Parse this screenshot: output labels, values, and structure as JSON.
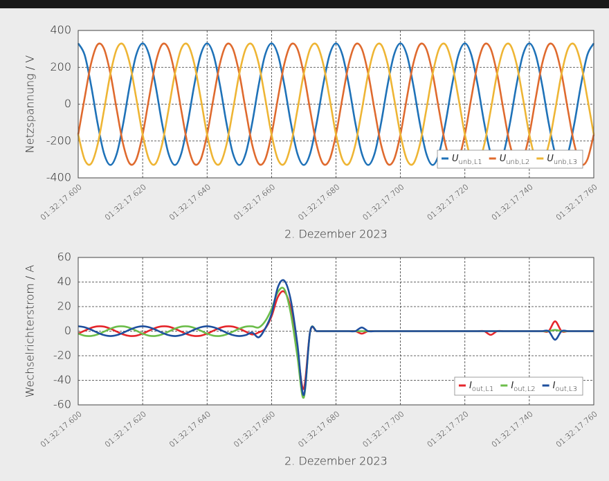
{
  "chart_data": [
    {
      "type": "line",
      "ylabel": "Netzspannung / V",
      "xlabel": "2. Dezember 2023",
      "x": [
        17.6,
        17.602,
        17.604,
        17.606,
        17.608,
        17.61,
        17.612,
        17.614,
        17.616,
        17.618,
        17.62,
        17.622,
        17.624,
        17.626,
        17.628,
        17.63,
        17.632,
        17.634,
        17.636,
        17.638,
        17.64,
        17.642,
        17.644,
        17.646,
        17.648,
        17.65,
        17.652,
        17.654,
        17.656,
        17.658,
        17.66,
        17.662,
        17.664,
        17.666,
        17.668,
        17.67,
        17.672,
        17.674,
        17.676,
        17.678,
        17.68,
        17.682,
        17.684,
        17.686,
        17.688,
        17.69,
        17.692,
        17.694,
        17.696,
        17.698,
        17.7,
        17.702,
        17.704,
        17.706,
        17.708,
        17.71,
        17.712,
        17.714,
        17.716,
        17.718,
        17.72,
        17.722,
        17.724,
        17.726,
        17.728,
        17.73,
        17.732,
        17.734,
        17.736,
        17.738,
        17.74,
        17.742,
        17.744,
        17.746,
        17.748,
        17.75,
        17.752,
        17.754,
        17.756,
        17.758,
        17.76
      ],
      "xlim": [
        17.6,
        17.76
      ],
      "xticks": [
        {
          "value": 17.6,
          "label": "01:32:17.600"
        },
        {
          "value": 17.62,
          "label": "01:32:17.620"
        },
        {
          "value": 17.64,
          "label": "01:32:17.640"
        },
        {
          "value": 17.66,
          "label": "01:32:17.660"
        },
        {
          "value": 17.68,
          "label": "01:32:17.680"
        },
        {
          "value": 17.7,
          "label": "01:32:17.700"
        },
        {
          "value": 17.72,
          "label": "01:32:17.720"
        },
        {
          "value": 17.74,
          "label": "01:32:17.740"
        },
        {
          "value": 17.76,
          "label": "01:32:17.760"
        }
      ],
      "ylim": [
        -400,
        400
      ],
      "yticks": [
        -400,
        -200,
        0,
        200,
        400
      ],
      "grid": true,
      "legend": "lower right",
      "series": [
        {
          "name": "U",
          "name_sub": "unb,L1",
          "color": "#1f72b8",
          "values": [
            330,
            267,
            102,
            -102,
            -267,
            -330,
            -267,
            -102,
            102,
            267,
            330,
            267,
            102,
            -102,
            -267,
            -330,
            -267,
            -102,
            102,
            267,
            330,
            267,
            102,
            -102,
            -267,
            -330,
            -267,
            -102,
            102,
            267,
            330,
            267,
            102,
            -102,
            -267,
            -330,
            -267,
            -102,
            102,
            267,
            330,
            267,
            102,
            -102,
            -267,
            -330,
            -267,
            -102,
            102,
            267,
            330,
            267,
            102,
            -102,
            -267,
            -330,
            -267,
            -102,
            102,
            267,
            330,
            267,
            102,
            -102,
            -267,
            -330,
            -267,
            -102,
            102,
            267,
            330,
            267,
            102,
            -102,
            -267,
            -330,
            -267,
            -102,
            102,
            267,
            330
          ]
        },
        {
          "name": "U",
          "name_sub": "unb,L2",
          "color": "#df6a2e",
          "values": [
            -165,
            34,
            221,
            323,
            301,
            165,
            -34,
            -221,
            -323,
            -301,
            -165,
            34,
            221,
            323,
            301,
            165,
            -34,
            -221,
            -323,
            -301,
            -165,
            34,
            221,
            323,
            301,
            165,
            -34,
            -221,
            -323,
            -301,
            -165,
            34,
            221,
            323,
            301,
            165,
            -34,
            -221,
            -323,
            -301,
            -165,
            34,
            221,
            323,
            301,
            165,
            -34,
            -221,
            -323,
            -301,
            -165,
            34,
            221,
            323,
            301,
            165,
            -34,
            -221,
            -323,
            -301,
            -165,
            34,
            221,
            323,
            301,
            165,
            -34,
            -221,
            -323,
            -301,
            -165,
            34,
            221,
            323,
            301,
            165,
            -34,
            -221,
            -323,
            -301,
            -165
          ]
        },
        {
          "name": "U",
          "name_sub": "unb,L3",
          "color": "#eeb534",
          "values": [
            -165,
            -301,
            -323,
            -221,
            -34,
            165,
            301,
            323,
            221,
            34,
            -165,
            -301,
            -323,
            -221,
            -34,
            165,
            301,
            323,
            221,
            34,
            -165,
            -301,
            -323,
            -221,
            -34,
            165,
            301,
            323,
            221,
            34,
            -165,
            -301,
            -323,
            -221,
            -34,
            165,
            301,
            323,
            221,
            34,
            -165,
            -301,
            -323,
            -221,
            -34,
            165,
            301,
            323,
            221,
            34,
            -165,
            -301,
            -323,
            -221,
            -34,
            165,
            301,
            323,
            221,
            34,
            -165,
            -301,
            -323,
            -221,
            -34,
            165,
            301,
            323,
            221,
            34,
            -165,
            -301,
            -323,
            -221,
            -34,
            165,
            301,
            323,
            221,
            34,
            -165
          ]
        }
      ]
    },
    {
      "type": "line",
      "ylabel": "Wechselrichterstrom / A",
      "xlabel": "2. Dezember 2023",
      "x": [
        17.6,
        17.602,
        17.604,
        17.606,
        17.608,
        17.61,
        17.612,
        17.614,
        17.616,
        17.618,
        17.62,
        17.622,
        17.624,
        17.626,
        17.628,
        17.63,
        17.632,
        17.634,
        17.636,
        17.638,
        17.64,
        17.642,
        17.644,
        17.646,
        17.648,
        17.65,
        17.652,
        17.654,
        17.656,
        17.658,
        17.66,
        17.662,
        17.664,
        17.666,
        17.668,
        17.67,
        17.672,
        17.674,
        17.676,
        17.678,
        17.68,
        17.682,
        17.684,
        17.686,
        17.688,
        17.69,
        17.692,
        17.694,
        17.696,
        17.698,
        17.7,
        17.702,
        17.704,
        17.706,
        17.708,
        17.71,
        17.712,
        17.714,
        17.716,
        17.718,
        17.72,
        17.722,
        17.724,
        17.726,
        17.728,
        17.73,
        17.732,
        17.734,
        17.736,
        17.738,
        17.74,
        17.742,
        17.744,
        17.746,
        17.748,
        17.75,
        17.752,
        17.754,
        17.756,
        17.758,
        17.76
      ],
      "xlim": [
        17.6,
        17.76
      ],
      "xticks": [
        {
          "value": 17.6,
          "label": "01:32:17.600"
        },
        {
          "value": 17.62,
          "label": "01:32:17.620"
        },
        {
          "value": 17.64,
          "label": "01:32:17.640"
        },
        {
          "value": 17.66,
          "label": "01:32:17.660"
        },
        {
          "value": 17.68,
          "label": "01:32:17.680"
        },
        {
          "value": 17.7,
          "label": "01:32:17.700"
        },
        {
          "value": 17.72,
          "label": "01:32:17.720"
        },
        {
          "value": 17.74,
          "label": "01:32:17.740"
        },
        {
          "value": 17.76,
          "label": "01:32:17.760"
        }
      ],
      "ylim": [
        -60,
        60
      ],
      "yticks": [
        -60,
        -40,
        -20,
        0,
        20,
        40,
        60
      ],
      "grid": true,
      "legend": "lower right",
      "series": [
        {
          "name": "I",
          "name_sub": "out,L1",
          "color": "#e5262b",
          "values": [
            -2,
            0.4,
            2.7,
            3.9,
            3.7,
            2,
            -0.4,
            -2.7,
            -3.9,
            -3.7,
            -2,
            0.4,
            2.7,
            3.9,
            3.7,
            2,
            -0.4,
            -2.7,
            -3.9,
            -3.7,
            -2,
            0.4,
            2.7,
            3.9,
            3.7,
            2,
            -0.4,
            -2.7,
            -1,
            2,
            12,
            28,
            32,
            18,
            -15,
            -47,
            0,
            0,
            0,
            0,
            0,
            0,
            0,
            0,
            -2,
            0,
            0,
            0,
            0,
            0,
            0,
            0,
            0,
            0,
            0,
            0,
            0,
            0,
            0,
            0,
            0,
            0,
            0,
            0,
            -3,
            0,
            0,
            0,
            0,
            0,
            0,
            0,
            0,
            0,
            8,
            0,
            0,
            0,
            0,
            0,
            0
          ]
        },
        {
          "name": "I",
          "name_sub": "out,L2",
          "color": "#6cbd4b",
          "values": [
            -2,
            -3.7,
            -3.9,
            -2.7,
            -0.4,
            2,
            3.7,
            3.9,
            2.7,
            0.4,
            -2,
            -3.7,
            -3.9,
            -2.7,
            -0.4,
            2,
            3.7,
            3.9,
            2.7,
            0.4,
            -2,
            -3.7,
            -3.9,
            -2.7,
            -0.4,
            2,
            3.7,
            3.9,
            3,
            8,
            18,
            32,
            34,
            14,
            -20,
            -54,
            0,
            0,
            0,
            0,
            0,
            0,
            0,
            0,
            0,
            0,
            0,
            0,
            0,
            0,
            0,
            0,
            0,
            0,
            0,
            0,
            0,
            0,
            0,
            0,
            0,
            0,
            0,
            0,
            0,
            0,
            0,
            0,
            0,
            0,
            0,
            0,
            0,
            0,
            1,
            0,
            0,
            0,
            0,
            0,
            0
          ]
        },
        {
          "name": "I",
          "name_sub": "out,L3",
          "color": "#1e4f9e",
          "values": [
            4,
            3.2,
            1.2,
            -1.2,
            -3.2,
            -4,
            -3.2,
            -1.2,
            1.2,
            3.2,
            4,
            3.2,
            1.2,
            -1.2,
            -3.2,
            -4,
            -3.2,
            -1.2,
            1.2,
            3.2,
            4,
            3.2,
            1.2,
            -1.2,
            -3.2,
            -4,
            -3.2,
            -1.2,
            -5,
            2,
            14,
            36,
            41,
            25,
            -10,
            -52,
            0,
            0,
            0,
            0,
            0,
            0,
            0,
            0,
            3,
            0,
            0,
            0,
            0,
            0,
            0,
            0,
            0,
            0,
            0,
            0,
            0,
            0,
            0,
            0,
            0,
            0,
            0,
            0,
            0,
            0,
            0,
            0,
            0,
            0,
            0,
            0,
            0,
            0,
            -7,
            0,
            0,
            0,
            0,
            0,
            0
          ]
        }
      ]
    }
  ]
}
